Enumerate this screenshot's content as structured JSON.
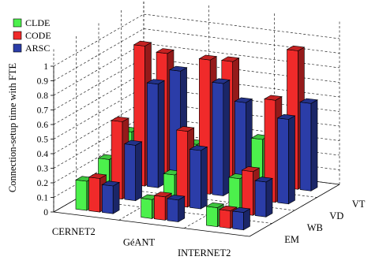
{
  "chart_data": {
    "type": "bar3d",
    "title": "",
    "ylabel": "Connection-setup time with FTE",
    "ylim": [
      0,
      1
    ],
    "yticks": [
      "0",
      "0.1",
      "0.2",
      "0.3",
      "0.4",
      "0.5",
      "0.6",
      "0.7",
      "0.8",
      "0.9",
      "1"
    ],
    "categories": [
      "CERNET2",
      "GéANT",
      "INTERNET2"
    ],
    "depth_categories": [
      "EM",
      "WB",
      "VD",
      "VT"
    ],
    "legend_position": "top-left",
    "grid": true,
    "series": [
      {
        "name": "CLDE",
        "color": "#4cf04c",
        "values": [
          [
            0.2,
            0.13,
            0.13
          ],
          [
            0.26,
            0.21,
            0.24
          ],
          [
            0.36,
            0.33,
            0.42
          ],
          [
            0.43,
            0.38,
            0.37
          ]
        ]
      },
      {
        "name": "CODE",
        "color": "#f02a2a",
        "values": [
          [
            0.23,
            0.16,
            0.12
          ],
          [
            0.53,
            0.52,
            0.3
          ],
          [
            0.96,
            0.92,
            0.7
          ],
          [
            0.82,
            0.82,
            0.95
          ]
        ]
      },
      {
        "name": "ARSC",
        "color": "#2b3da8",
        "values": [
          [
            0.19,
            0.15,
            0.12
          ],
          [
            0.38,
            0.4,
            0.24
          ],
          [
            0.71,
            0.77,
            0.58
          ],
          [
            0.71,
            0.55,
            0.6
          ]
        ]
      }
    ]
  }
}
